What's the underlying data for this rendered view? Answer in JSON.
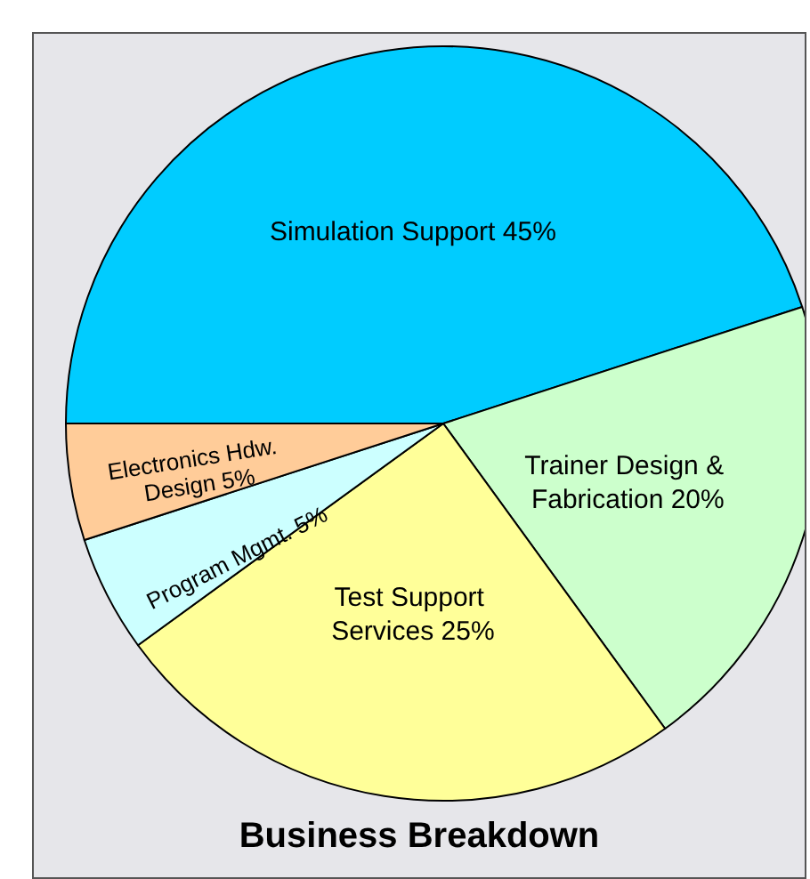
{
  "chart_data": {
    "type": "pie",
    "title": "Business Breakdown",
    "categories": [
      "Simulation Support",
      "Trainer Design & Fabrication",
      "Test Support Services",
      "Program Mgmt.",
      "Electronics Hdw. Design"
    ],
    "values": [
      45,
      20,
      25,
      5,
      5
    ],
    "colors": [
      "#00ccff",
      "#ccffcc",
      "#ffff99",
      "#ccffff",
      "#ffcc99"
    ],
    "value_labels": [
      "45%",
      "20%",
      "25%",
      "5%",
      "5%"
    ],
    "legend": false
  }
}
